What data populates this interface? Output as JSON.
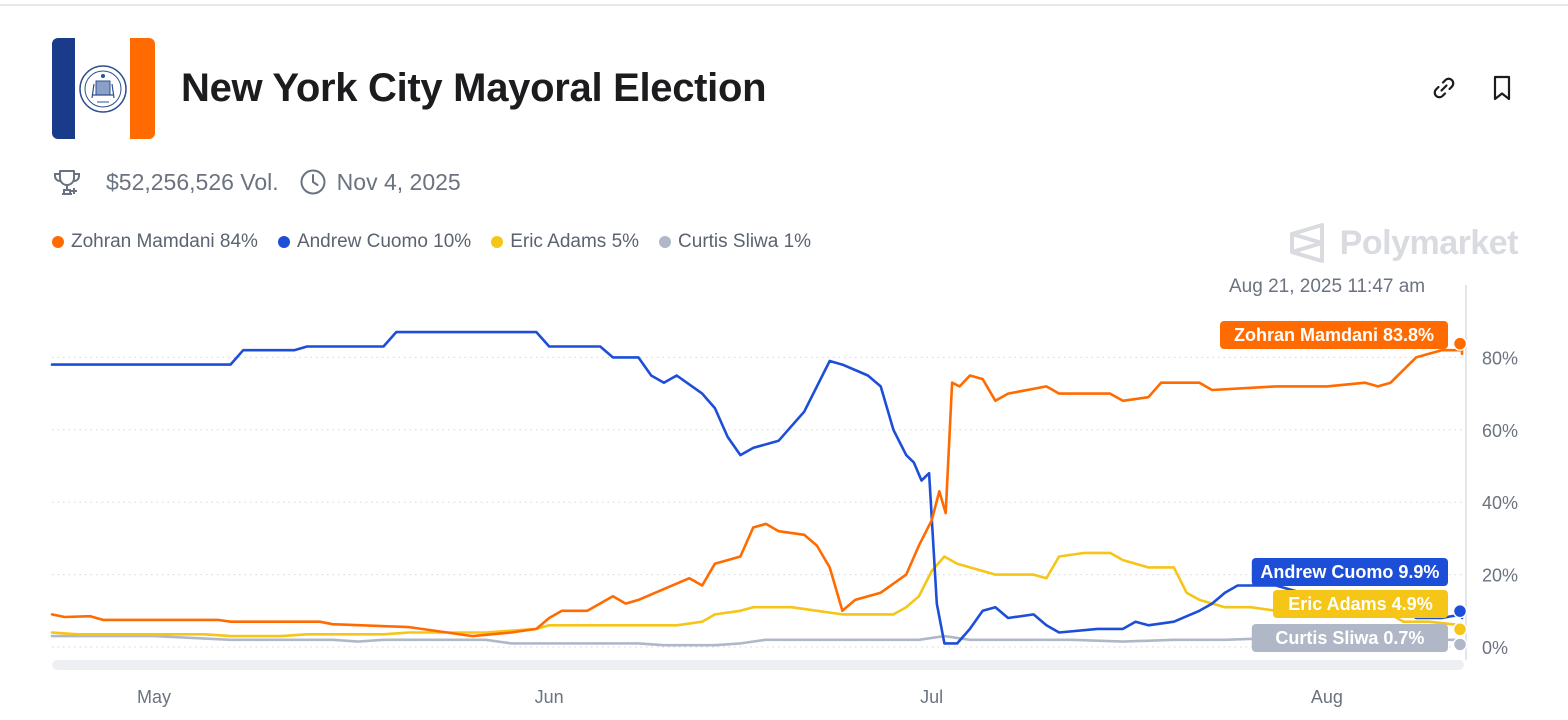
{
  "header": {
    "title": "New York City Mayoral Election",
    "volume": "$52,256,526 Vol.",
    "end_date": "Nov 4, 2025"
  },
  "legend": [
    {
      "label": "Zohran Mamdani 84%",
      "color": "#ff6b00"
    },
    {
      "label": "Andrew Cuomo 10%",
      "color": "#1d4ed8"
    },
    {
      "label": "Eric Adams 5%",
      "color": "#f5c518"
    },
    {
      "label": "Curtis Sliwa 1%",
      "color": "#b0b8c8"
    }
  ],
  "watermark": "Polymarket",
  "hover_timestamp": "Aug 21, 2025 11:47 am",
  "icons": {
    "trophy": "trophy-icon",
    "clock": "clock-icon",
    "link": "link-icon",
    "bookmark": "bookmark-icon",
    "seal": "city-seal-icon",
    "polymarket": "polymarket-logo-icon"
  },
  "chart_data": {
    "type": "line",
    "x_months": [
      "May",
      "Jun",
      "Jul",
      "Aug"
    ],
    "x_month_positions_day": [
      0,
      31,
      61,
      92
    ],
    "x_range_day": [
      -8,
      102.6
    ],
    "y_ticks": [
      "0%",
      "20%",
      "40%",
      "60%",
      "80%"
    ],
    "y_tick_values": [
      0,
      20,
      40,
      60,
      80
    ],
    "ylim": [
      0,
      100
    ],
    "grid": true,
    "series": [
      {
        "name": "Zohran Mamdani",
        "color": "#ff6b00",
        "end_label": "Zohran Mamdani 83.8%",
        "end_value": 83.8,
        "points": [
          [
            -8,
            9
          ],
          [
            -7,
            8.3
          ],
          [
            -5,
            8.5
          ],
          [
            -4,
            7.5
          ],
          [
            5,
            7.5
          ],
          [
            6,
            7
          ],
          [
            13,
            7
          ],
          [
            14,
            6.3
          ],
          [
            20,
            5.5
          ],
          [
            23,
            4
          ],
          [
            25,
            3
          ],
          [
            28,
            4
          ],
          [
            30,
            5
          ],
          [
            31,
            8
          ],
          [
            32,
            10
          ],
          [
            34,
            10
          ],
          [
            36,
            14
          ],
          [
            37,
            12
          ],
          [
            38,
            13
          ],
          [
            40,
            16
          ],
          [
            42,
            19
          ],
          [
            43,
            17
          ],
          [
            44,
            23
          ],
          [
            46,
            25
          ],
          [
            47,
            33
          ],
          [
            48,
            34
          ],
          [
            49,
            32
          ],
          [
            51,
            31
          ],
          [
            52,
            28
          ],
          [
            53,
            22
          ],
          [
            54,
            10
          ],
          [
            55,
            13
          ],
          [
            57,
            15
          ],
          [
            59,
            20
          ],
          [
            60,
            28
          ],
          [
            61,
            35
          ],
          [
            61.6,
            43
          ],
          [
            62.1,
            37
          ],
          [
            62.6,
            73
          ],
          [
            63.2,
            72
          ],
          [
            64,
            75
          ],
          [
            65,
            74
          ],
          [
            66,
            68
          ],
          [
            67,
            70
          ],
          [
            70,
            72
          ],
          [
            71,
            70
          ],
          [
            75,
            70
          ],
          [
            76,
            68
          ],
          [
            78,
            69
          ],
          [
            79,
            73
          ],
          [
            82,
            73
          ],
          [
            83,
            71
          ],
          [
            88,
            72
          ],
          [
            92,
            72
          ],
          [
            95,
            73
          ],
          [
            96,
            72
          ],
          [
            97,
            73
          ],
          [
            99,
            80
          ],
          [
            101,
            82
          ],
          [
            104,
            82
          ],
          [
            105,
            81
          ],
          [
            106,
            83
          ],
          [
            108,
            81
          ],
          [
            110,
            82
          ],
          [
            113,
            83
          ],
          [
            116.5,
            83.8
          ]
        ]
      },
      {
        "name": "Andrew Cuomo",
        "color": "#1d4ed8",
        "end_label": "Andrew Cuomo 9.9%",
        "end_value": 9.9,
        "points": [
          [
            -8,
            78
          ],
          [
            6,
            78
          ],
          [
            7,
            82
          ],
          [
            11,
            82
          ],
          [
            12,
            83
          ],
          [
            18,
            83
          ],
          [
            19,
            87
          ],
          [
            30,
            87
          ],
          [
            31,
            83
          ],
          [
            35,
            83
          ],
          [
            36,
            80
          ],
          [
            38,
            80
          ],
          [
            39,
            75
          ],
          [
            40,
            73
          ],
          [
            41,
            75
          ],
          [
            43,
            70
          ],
          [
            44,
            66
          ],
          [
            45,
            58
          ],
          [
            46,
            53
          ],
          [
            47,
            55
          ],
          [
            49,
            57
          ],
          [
            50,
            61
          ],
          [
            51,
            65
          ],
          [
            52,
            72
          ],
          [
            53,
            79
          ],
          [
            54,
            78
          ],
          [
            56,
            75
          ],
          [
            57,
            72
          ],
          [
            58,
            60
          ],
          [
            59,
            53
          ],
          [
            59.6,
            51
          ],
          [
            60.2,
            46
          ],
          [
            60.8,
            48
          ],
          [
            61.4,
            12
          ],
          [
            62,
            1
          ],
          [
            63,
            1
          ],
          [
            64,
            5
          ],
          [
            65,
            10
          ],
          [
            66,
            11
          ],
          [
            67,
            8
          ],
          [
            69,
            9
          ],
          [
            70,
            6
          ],
          [
            71,
            4
          ],
          [
            74,
            5
          ],
          [
            76,
            5
          ],
          [
            77,
            7
          ],
          [
            78,
            6
          ],
          [
            80,
            7
          ],
          [
            82,
            10
          ],
          [
            83,
            12
          ],
          [
            84,
            15
          ],
          [
            85,
            17
          ],
          [
            88,
            17
          ],
          [
            90,
            15
          ],
          [
            92,
            14
          ],
          [
            96,
            14
          ],
          [
            97,
            13
          ],
          [
            99,
            8
          ],
          [
            101,
            8
          ],
          [
            104,
            9
          ],
          [
            108,
            9
          ],
          [
            110,
            8
          ],
          [
            113,
            9
          ],
          [
            116.5,
            9.9
          ]
        ]
      },
      {
        "name": "Eric Adams",
        "color": "#f5c518",
        "end_label": "Eric Adams 4.9%",
        "end_value": 4.9,
        "points": [
          [
            -8,
            4
          ],
          [
            -6,
            3.5
          ],
          [
            4,
            3.5
          ],
          [
            6,
            3
          ],
          [
            10,
            3
          ],
          [
            12,
            3.5
          ],
          [
            18,
            3.5
          ],
          [
            20,
            4
          ],
          [
            26,
            4
          ],
          [
            28,
            4.5
          ],
          [
            30,
            5
          ],
          [
            31,
            6
          ],
          [
            36,
            6
          ],
          [
            41,
            6
          ],
          [
            43,
            7
          ],
          [
            44,
            9
          ],
          [
            46,
            10
          ],
          [
            47,
            11
          ],
          [
            50,
            11
          ],
          [
            52,
            10
          ],
          [
            54,
            9
          ],
          [
            56,
            9
          ],
          [
            58,
            9
          ],
          [
            59,
            11
          ],
          [
            60,
            14
          ],
          [
            61,
            21
          ],
          [
            62,
            25
          ],
          [
            63,
            23
          ],
          [
            65,
            21
          ],
          [
            66,
            20
          ],
          [
            67,
            20
          ],
          [
            69,
            20
          ],
          [
            70,
            19
          ],
          [
            71,
            25
          ],
          [
            73,
            26
          ],
          [
            75,
            26
          ],
          [
            76,
            24
          ],
          [
            78,
            22
          ],
          [
            80,
            22
          ],
          [
            81,
            15
          ],
          [
            82,
            13
          ],
          [
            84,
            11
          ],
          [
            86,
            11
          ],
          [
            88,
            10
          ],
          [
            92,
            10
          ],
          [
            94,
            9
          ],
          [
            97,
            9
          ],
          [
            98,
            7
          ],
          [
            100,
            7
          ],
          [
            104,
            6
          ],
          [
            108,
            6
          ],
          [
            112,
            6
          ],
          [
            116.5,
            4.9
          ]
        ]
      },
      {
        "name": "Curtis Sliwa",
        "color": "#b0b8c8",
        "end_label": "Curtis Sliwa 0.7%",
        "end_value": 0.7,
        "points": [
          [
            -8,
            3
          ],
          [
            -2,
            3
          ],
          [
            0,
            3
          ],
          [
            6,
            2
          ],
          [
            10,
            2
          ],
          [
            14,
            2
          ],
          [
            16,
            1.5
          ],
          [
            18,
            2
          ],
          [
            26,
            2
          ],
          [
            28,
            1
          ],
          [
            34,
            1
          ],
          [
            38,
            1
          ],
          [
            40,
            0.5
          ],
          [
            44,
            0.5
          ],
          [
            46,
            1
          ],
          [
            48,
            2
          ],
          [
            52,
            2
          ],
          [
            56,
            2
          ],
          [
            60,
            2
          ],
          [
            62,
            3
          ],
          [
            64,
            2
          ],
          [
            68,
            2
          ],
          [
            72,
            2
          ],
          [
            76,
            1.5
          ],
          [
            80,
            2
          ],
          [
            84,
            2
          ],
          [
            88,
            2.5
          ],
          [
            92,
            2.5
          ],
          [
            96,
            2.5
          ],
          [
            100,
            2
          ],
          [
            104,
            2
          ],
          [
            108,
            2
          ],
          [
            112,
            2
          ],
          [
            116.5,
            0.7
          ]
        ]
      }
    ]
  }
}
